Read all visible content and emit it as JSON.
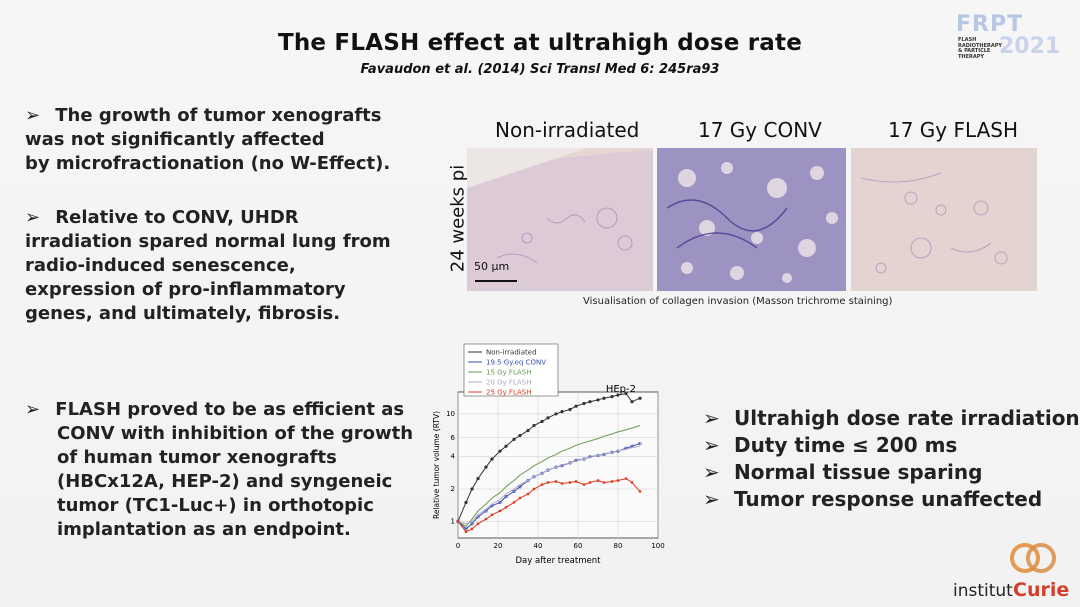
{
  "title": "The FLASH effect at ultrahigh dose rate",
  "subtitle": "Favaudon et al. (2014) Sci Transl Med 6: 245ra93",
  "logo": {
    "frpt": "FRPT",
    "year": "2021",
    "tagline": "FLASH RADIOTHERAPY & PARTICLE THERAPY"
  },
  "left_bullets": {
    "b1": [
      "The growth of tumor xenografts",
      "was not significantly affected",
      "by microfractionation (no W-Effect)."
    ],
    "b2": [
      "Relative to CONV, UHDR",
      "irradiation spared normal lung from",
      "radio-induced senescence,",
      "expression of pro-inflammatory",
      "genes, and ultimately, fibrosis."
    ],
    "b3": [
      "FLASH proved to be as efficient as",
      "CONV with inhibition of the growth",
      "of human tumor xenografts",
      "(HBCx12A, HEP-2) and syngeneic",
      "tumor (TC1-Luc+) in orthotopic",
      "implantation as an endpoint."
    ]
  },
  "micrographs": {
    "labels": [
      "Non-irradiated",
      "17 Gy CONV",
      "17 Gy FLASH"
    ],
    "ylabel": "24 weeks pi",
    "scale": "50 µm",
    "caption": "Visualisation of collagen invasion (Masson trichrome staining)"
  },
  "right_bullets": [
    "Ultrahigh dose rate irradiation",
    "Duty time ≤ 200 ms",
    "Normal tissue sparing",
    "Tumor response unaffected"
  ],
  "chart_data": {
    "type": "line",
    "title": "HEp-2",
    "xlabel": "Day after treatment",
    "ylabel": "Relative tumor volume (RTV)",
    "xlim": [
      0,
      100
    ],
    "ylim": [
      0.7,
      16
    ],
    "yscale": "log",
    "xticks": [
      0,
      20,
      40,
      60,
      80,
      100
    ],
    "yticks": [
      1,
      2,
      4,
      6,
      10
    ],
    "legend": "top-left",
    "series": [
      {
        "name": "Non-irradiated",
        "color": "#333333",
        "x": [
          0,
          4,
          7,
          10,
          14,
          17,
          21,
          24,
          28,
          31,
          35,
          38,
          42,
          45,
          49,
          52,
          56,
          59,
          63,
          66,
          70,
          73,
          77,
          80,
          84,
          87,
          91
        ],
        "y": [
          1,
          1.5,
          2.0,
          2.5,
          3.2,
          3.8,
          4.5,
          5.0,
          5.8,
          6.3,
          7.0,
          7.8,
          8.5,
          9.2,
          10,
          10.5,
          11,
          11.8,
          12.5,
          13,
          13.5,
          14,
          14.5,
          15,
          15.5,
          13,
          14
        ]
      },
      {
        "name": "19.5 Gy.eq CONV",
        "color": "#3a4fb0",
        "x": [
          0,
          4,
          7,
          10,
          14,
          17,
          21,
          24,
          28,
          31,
          35,
          38,
          42,
          45,
          49,
          52,
          56,
          59,
          63,
          66,
          70,
          73,
          77,
          80,
          84,
          87,
          91
        ],
        "y": [
          1,
          0.85,
          0.95,
          1.1,
          1.25,
          1.4,
          1.5,
          1.7,
          1.9,
          2.1,
          2.4,
          2.6,
          2.8,
          3.0,
          3.2,
          3.3,
          3.5,
          3.7,
          3.8,
          4.0,
          4.1,
          4.2,
          4.4,
          4.5,
          4.8,
          5.0,
          5.3
        ]
      },
      {
        "name": "15 Gy FLASH",
        "color": "#6a9a50",
        "x": [
          0,
          4,
          7,
          10,
          14,
          17,
          21,
          24,
          28,
          31,
          35,
          38,
          42,
          45,
          49,
          52,
          56,
          59,
          63,
          66,
          70,
          73,
          77,
          80,
          84,
          87,
          91
        ],
        "y": [
          1,
          0.9,
          1.05,
          1.25,
          1.45,
          1.65,
          1.85,
          2.1,
          2.4,
          2.7,
          3.0,
          3.3,
          3.6,
          3.9,
          4.2,
          4.5,
          4.8,
          5.1,
          5.4,
          5.6,
          5.9,
          6.2,
          6.5,
          6.8,
          7.1,
          7.4,
          7.8
        ]
      },
      {
        "name": "20 Gy FLASH",
        "color": "#b0a8c8",
        "x": [
          0,
          4,
          7,
          10,
          14,
          17,
          21,
          24,
          28,
          31,
          35,
          38,
          42,
          45,
          49,
          52,
          56,
          59,
          63,
          66,
          70,
          73,
          77,
          80,
          84,
          87,
          91
        ],
        "y": [
          1,
          0.95,
          1.0,
          1.15,
          1.3,
          1.45,
          1.6,
          1.8,
          2.0,
          2.2,
          2.4,
          2.6,
          2.8,
          3.0,
          3.2,
          3.35,
          3.5,
          3.65,
          3.8,
          3.95,
          4.1,
          4.25,
          4.4,
          4.55,
          4.7,
          4.85,
          5.0
        ]
      },
      {
        "name": "25 Gy FLASH",
        "color": "#e03a1e",
        "x": [
          0,
          4,
          7,
          10,
          14,
          17,
          21,
          24,
          28,
          31,
          35,
          38,
          42,
          45,
          49,
          52,
          56,
          59,
          63,
          66,
          70,
          73,
          77,
          80,
          84,
          87,
          91
        ],
        "y": [
          1,
          0.8,
          0.85,
          0.95,
          1.05,
          1.15,
          1.25,
          1.35,
          1.5,
          1.65,
          1.8,
          2.0,
          2.2,
          2.3,
          2.35,
          2.25,
          2.3,
          2.35,
          2.2,
          2.3,
          2.4,
          2.3,
          2.35,
          2.4,
          2.5,
          2.3,
          1.9
        ]
      }
    ]
  },
  "institut": {
    "name": "institut",
    "curie": "Curie"
  },
  "colors": {
    "accent": "#d2402a",
    "logo_blue": "#b7c6e6"
  }
}
